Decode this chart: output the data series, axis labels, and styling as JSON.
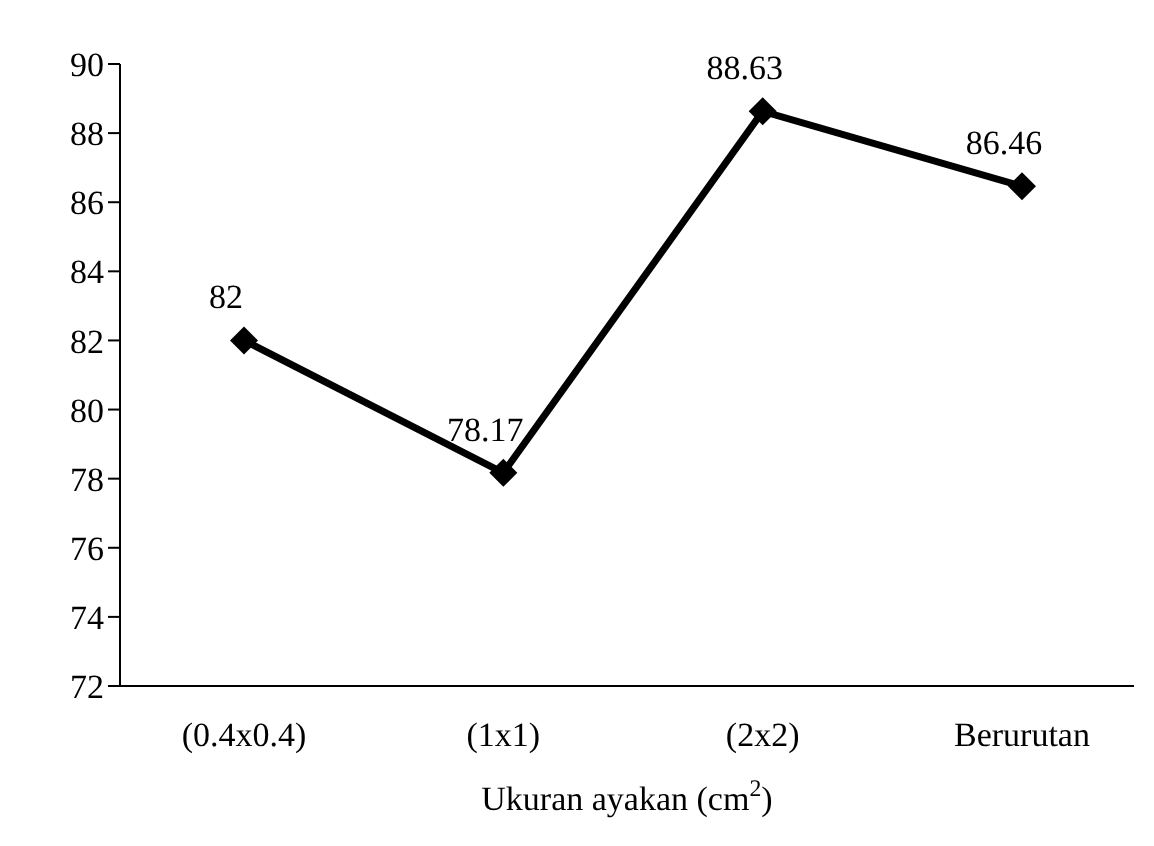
{
  "chart_data": {
    "type": "line",
    "xlabel": "Ukuran  ayakan (cm$^{2}$)",
    "categories": [
      "(0.4x0.4)",
      "(1x1)",
      "(2x2)",
      "Berurutan"
    ],
    "series": [
      {
        "color": "#000000",
        "values": [
          82,
          78.17,
          88.63,
          86.46
        ]
      }
    ],
    "ylim": [
      72,
      90
    ],
    "yticks": [
      72,
      74,
      76,
      78,
      80,
      82,
      84,
      86,
      88,
      90
    ],
    "grid": false,
    "legend": false,
    "marker": "diamond",
    "line_style": "solid",
    "data_labels": true
  }
}
